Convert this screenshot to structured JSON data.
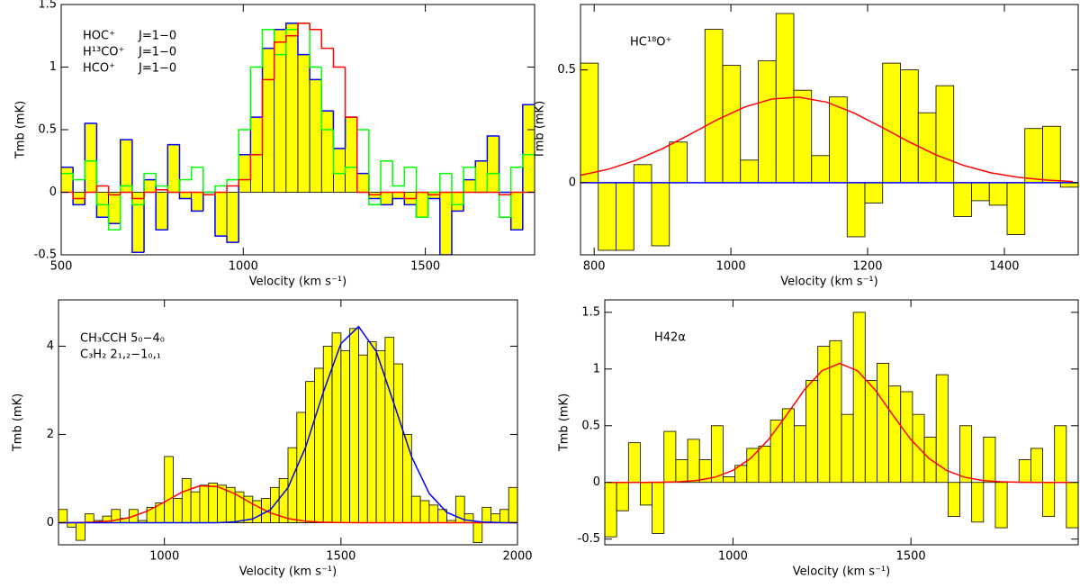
{
  "chart_data": [
    {
      "type": "histogram",
      "xlabel": "Velocity (km s⁻¹)",
      "ylabel": "Tmb (mK)",
      "xlim": [
        500,
        1800
      ],
      "ylim": [
        -0.5,
        1.5
      ],
      "xticks": [
        500,
        1000,
        1500
      ],
      "yticks": [
        -0.5,
        0,
        0.5,
        1,
        1.5
      ],
      "bar_color": "#ffff00",
      "legend": "upper left",
      "bins": [
        500,
        532.5,
        565,
        597.5,
        630,
        662.5,
        695,
        727.5,
        760,
        792.5,
        825,
        857.5,
        890,
        922.5,
        955,
        987.5,
        1020,
        1052.5,
        1085,
        1117.5,
        1150,
        1182.5,
        1215,
        1247.5,
        1280,
        1312.5,
        1345,
        1377.5,
        1410,
        1442.5,
        1475,
        1507.5,
        1540,
        1572.5,
        1605,
        1637.5,
        1670,
        1702.5,
        1735,
        1767.5,
        1800
      ],
      "series": [
        {
          "name": "HOC⁺",
          "color": "#0000ff",
          "style": "bars",
          "outline": true,
          "values": [
            0.2,
            -0.1,
            0.55,
            -0.2,
            -0.25,
            0.42,
            -0.48,
            0.1,
            -0.3,
            0.38,
            -0.05,
            -0.15,
            0.0,
            -0.35,
            -0.4,
            0.3,
            0.6,
            1.15,
            1.3,
            1.35,
            1.1,
            0.9,
            0.65,
            0.35,
            0.6,
            0.15,
            -0.05,
            -0.1,
            -0.05,
            -0.1,
            -0.2,
            -0.05,
            -0.5,
            -0.15,
            0.1,
            0.25,
            0.45,
            0.0,
            -0.3,
            0.7
          ]
        },
        {
          "name": "H¹³CO⁺",
          "color": "#00ff00",
          "style": "step",
          "values": [
            0.15,
            0.1,
            0.25,
            -0.1,
            -0.3,
            0.05,
            -0.1,
            0.15,
            0.05,
            0.0,
            0.1,
            0.2,
            0.0,
            0.05,
            0.1,
            0.5,
            1.0,
            1.3,
            1.1,
            1.3,
            1.35,
            1.0,
            0.5,
            0.15,
            0.2,
            0.5,
            -0.1,
            0.25,
            0.05,
            0.2,
            -0.2,
            0.0,
            0.15,
            -0.1,
            0.2,
            0.0,
            0.15,
            -0.2,
            0.2,
            0.3
          ]
        },
        {
          "name": "HCO⁺",
          "color": "#ff0000",
          "style": "step",
          "values": [
            0,
            -0.05,
            0,
            0.05,
            -0.02,
            0,
            -0.05,
            0,
            0.02,
            0,
            0,
            0,
            -0.02,
            0,
            0.05,
            0.1,
            0.3,
            0.9,
            1.2,
            1.25,
            1.35,
            1.3,
            1.15,
            1.0,
            0.6,
            0,
            -0.02,
            0,
            0,
            -0.05,
            0,
            -0.02,
            0,
            0,
            0,
            0,
            0,
            -0.02,
            0,
            0
          ]
        }
      ],
      "annotations": [
        {
          "text": "J=1−0",
          "color": "#0000ff"
        },
        {
          "text": "J=1−0",
          "color": "#00ff00"
        },
        {
          "text": "J=1−0",
          "color": "#ff0000"
        }
      ]
    },
    {
      "type": "histogram",
      "xlabel": "Velocity (km s⁻¹)",
      "ylabel": "Tmb (mK)",
      "xlim": [
        780,
        1508
      ],
      "ylim": [
        -0.32,
        0.79
      ],
      "xticks": [
        800,
        1000,
        1200,
        1400
      ],
      "yticks": [
        0,
        0.5
      ],
      "bar_color": "#ffff00",
      "baseline_color": "#0000ff",
      "label": "HC¹⁸O⁺",
      "label_color": "#ff0000",
      "bins": [
        780,
        806,
        832,
        858,
        884,
        910,
        936,
        962,
        988,
        1014,
        1040,
        1066,
        1092,
        1118,
        1144,
        1170,
        1196,
        1222,
        1248,
        1274,
        1300,
        1326,
        1352,
        1378,
        1404,
        1430,
        1456,
        1482,
        1508
      ],
      "series": [
        {
          "color": "#000000",
          "style": "bars",
          "values": [
            0.53,
            -0.3,
            -0.3,
            0.08,
            -0.28,
            0.18,
            0.0,
            0.68,
            0.52,
            0.1,
            0.54,
            0.75,
            0.41,
            0.12,
            0.38,
            -0.24,
            -0.09,
            0.53,
            0.5,
            0.31,
            0.43,
            -0.15,
            -0.08,
            -0.1,
            -0.23,
            0.24,
            0.25,
            -0.02
          ]
        }
      ],
      "fits": [
        {
          "color": "#ff0000",
          "x": [
            780,
            820,
            860,
            900,
            940,
            980,
            1020,
            1060,
            1100,
            1140,
            1180,
            1220,
            1260,
            1300,
            1340,
            1380,
            1420,
            1460,
            1500
          ],
          "values": [
            0.033,
            0.059,
            0.098,
            0.151,
            0.214,
            0.279,
            0.335,
            0.371,
            0.379,
            0.357,
            0.309,
            0.247,
            0.182,
            0.123,
            0.077,
            0.044,
            0.024,
            0.012,
            0.005
          ]
        }
      ]
    },
    {
      "type": "histogram",
      "xlabel": "Velocity (km s⁻¹)",
      "ylabel": "Tmb (mK)",
      "xlim": [
        700,
        2000
      ],
      "ylim": [
        -0.5,
        5.05
      ],
      "xticks": [
        1000,
        1500,
        2000
      ],
      "yticks": [
        0,
        2,
        4
      ],
      "bar_color": "#ffff00",
      "legend": "upper left",
      "bins": [
        700,
        725,
        750,
        775,
        800,
        825,
        850,
        875,
        900,
        925,
        950,
        975,
        1000,
        1025,
        1050,
        1075,
        1100,
        1125,
        1150,
        1175,
        1200,
        1225,
        1250,
        1275,
        1300,
        1325,
        1350,
        1375,
        1400,
        1425,
        1450,
        1475,
        1500,
        1525,
        1550,
        1575,
        1600,
        1625,
        1650,
        1675,
        1700,
        1725,
        1750,
        1775,
        1800,
        1825,
        1850,
        1875,
        1900,
        1925,
        1950,
        1975,
        2000
      ],
      "series": [
        {
          "color": "#000000",
          "style": "bars",
          "values": [
            0.3,
            -0.1,
            -0.4,
            0.2,
            0.05,
            0.15,
            0.3,
            0.1,
            0.3,
            0.05,
            0.35,
            0.45,
            1.5,
            0.55,
            1.0,
            0.7,
            0.85,
            0.9,
            0.85,
            0.8,
            0.7,
            0.6,
            0.5,
            0.55,
            0.8,
            1.0,
            1.7,
            2.5,
            3.2,
            3.5,
            4.0,
            4.3,
            3.9,
            4.4,
            3.8,
            4.1,
            3.9,
            4.2,
            3.6,
            2.0,
            0.6,
            0.5,
            0.4,
            0.3,
            0.05,
            0.6,
            0.2,
            -0.45,
            0.35,
            0.2,
            0.3,
            0.8
          ]
        }
      ],
      "fits": [
        {
          "name": "CH₃CCH  5₀−4₀",
          "color": "#ff0000",
          "x": [
            700,
            750,
            800,
            850,
            900,
            950,
            1000,
            1050,
            1100,
            1150,
            1200,
            1250,
            1300,
            1350,
            1400,
            1450,
            1500,
            1550,
            1600,
            1650,
            1700,
            1750,
            1800,
            1850,
            1900,
            1950,
            2000
          ],
          "values": [
            0.001,
            0.003,
            0.012,
            0.042,
            0.115,
            0.258,
            0.469,
            0.694,
            0.836,
            0.819,
            0.653,
            0.423,
            0.223,
            0.095,
            0.033,
            0.009,
            0.002,
            0,
            0,
            0,
            0,
            0,
            0,
            0,
            0,
            0,
            0
          ]
        },
        {
          "name": "C₃H₂  2₁,₂−1₀,₁",
          "color": "#0000ff",
          "x": [
            700,
            750,
            800,
            850,
            900,
            950,
            1000,
            1050,
            1100,
            1150,
            1200,
            1250,
            1300,
            1350,
            1400,
            1450,
            1500,
            1550,
            1600,
            1650,
            1700,
            1750,
            1800,
            1850,
            1900,
            1950,
            2000
          ],
          "values": [
            0,
            0,
            0,
            0,
            0,
            0,
            0,
            0,
            0,
            0,
            0.02,
            0.086,
            0.292,
            0.794,
            1.715,
            2.955,
            4.06,
            4.445,
            3.88,
            2.7,
            1.497,
            0.662,
            0.233,
            0.065,
            0.015,
            0.003,
            0
          ]
        }
      ]
    },
    {
      "type": "histogram",
      "xlabel": "Velocity (km s⁻¹)",
      "ylabel": "Tmb (mK)",
      "xlim": [
        640,
        1970
      ],
      "ylim": [
        -0.55,
        1.61
      ],
      "xticks": [
        1000,
        1500
      ],
      "yticks": [
        -0.5,
        0,
        0.5,
        1,
        1.5
      ],
      "bar_color": "#ffff00",
      "label": "H42α",
      "label_color": "#ff0000",
      "bins": [
        640,
        673.25,
        706.5,
        739.75,
        773,
        806.25,
        839.5,
        872.75,
        906,
        939.25,
        972.5,
        1005.75,
        1039,
        1072.25,
        1105.5,
        1138.75,
        1172,
        1205.25,
        1238.5,
        1271.75,
        1305,
        1338.25,
        1371.5,
        1404.75,
        1438,
        1471.25,
        1504.5,
        1537.75,
        1571,
        1604.25,
        1637.5,
        1670.75,
        1704,
        1737.25,
        1770.5,
        1803.75,
        1837,
        1870.25,
        1903.5,
        1936.75,
        1970
      ],
      "series": [
        {
          "color": "#000000",
          "style": "bars",
          "values": [
            -0.48,
            -0.25,
            0.35,
            -0.2,
            -0.45,
            0.45,
            0.2,
            0.38,
            0.2,
            0.5,
            0.05,
            0.15,
            0.3,
            0.32,
            0.55,
            0.65,
            0.5,
            0.9,
            1.2,
            1.25,
            0.6,
            1.5,
            0.9,
            1.05,
            0.85,
            0.8,
            0.6,
            0.4,
            0.95,
            -0.3,
            0.5,
            -0.35,
            0.4,
            -0.4,
            0.0,
            0.2,
            0.3,
            -0.3,
            0.5,
            -0.4
          ]
        }
      ],
      "fits": [
        {
          "color": "#ff0000",
          "x": [
            650,
            700,
            750,
            800,
            850,
            900,
            950,
            1000,
            1050,
            1100,
            1150,
            1200,
            1250,
            1300,
            1350,
            1400,
            1450,
            1500,
            1550,
            1600,
            1650,
            1700,
            1750,
            1800,
            1850,
            1900,
            1950
          ],
          "values": [
            0,
            0,
            0,
            0.002,
            0.006,
            0.018,
            0.046,
            0.106,
            0.213,
            0.378,
            0.591,
            0.814,
            0.985,
            1.05,
            0.985,
            0.814,
            0.591,
            0.378,
            0.213,
            0.106,
            0.046,
            0.018,
            0.006,
            0.002,
            0,
            0,
            0
          ]
        }
      ]
    }
  ]
}
